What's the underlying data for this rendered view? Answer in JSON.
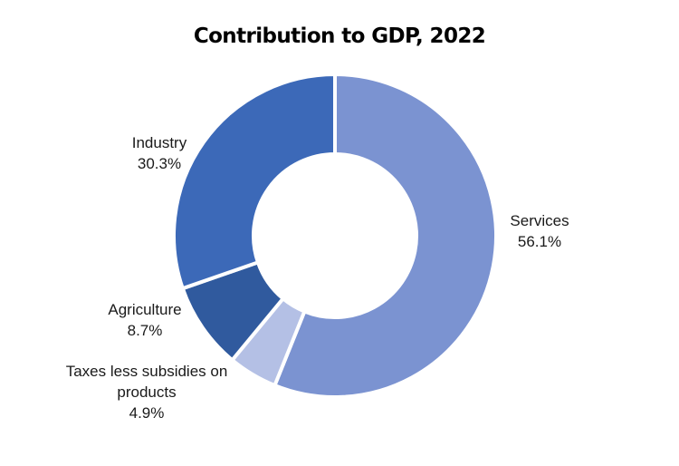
{
  "chart_data": {
    "type": "pie",
    "variant": "donut",
    "title": "Contribution to GDP, 2022",
    "slices": [
      {
        "label": "Services",
        "value": 56.1,
        "value_label": "56.1%",
        "color": "#7B93D1"
      },
      {
        "label": "Taxes less subsidies on products",
        "label_lines": [
          "Taxes less subsidies on",
          "products"
        ],
        "value": 4.9,
        "value_label": "4.9%",
        "color": "#B4C0E5"
      },
      {
        "label": "Agriculture",
        "value": 8.7,
        "value_label": "8.7%",
        "color": "#305A9E"
      },
      {
        "label": "Industry",
        "value": 30.3,
        "value_label": "30.3%",
        "color": "#3C69B8"
      }
    ],
    "legend": "none",
    "separator_color": "#ffffff"
  }
}
